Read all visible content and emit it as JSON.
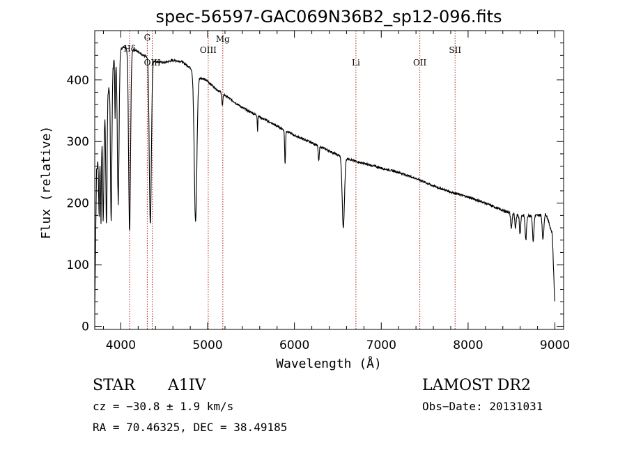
{
  "chart_data": {
    "type": "line",
    "title": "spec-56597-GAC069N36B2_sp12-096.fits",
    "xlabel": "Wavelength (Å)",
    "ylabel": "Flux (relative)",
    "xlim": [
      3700,
      9100
    ],
    "ylim": [
      -5,
      480
    ],
    "xticks": [
      4000,
      5000,
      6000,
      7000,
      8000,
      9000
    ],
    "yticks": [
      0,
      100,
      200,
      300,
      400
    ],
    "grid": false,
    "line_color": "#000000",
    "marker_color": "#b22222",
    "continuum": [
      [
        3700,
        30
      ],
      [
        3720,
        250
      ],
      [
        3760,
        290
      ],
      [
        3800,
        320
      ],
      [
        3850,
        380
      ],
      [
        3900,
        420
      ],
      [
        3950,
        440
      ],
      [
        4000,
        450
      ],
      [
        4050,
        455
      ],
      [
        4100,
        445
      ],
      [
        4150,
        450
      ],
      [
        4200,
        445
      ],
      [
        4250,
        440
      ],
      [
        4300,
        438
      ],
      [
        4400,
        430
      ],
      [
        4500,
        428
      ],
      [
        4600,
        432
      ],
      [
        4700,
        430
      ],
      [
        4800,
        420
      ],
      [
        4900,
        405
      ],
      [
        5000,
        398
      ],
      [
        5100,
        385
      ],
      [
        5200,
        375
      ],
      [
        5400,
        355
      ],
      [
        5600,
        340
      ],
      [
        5800,
        325
      ],
      [
        6000,
        310
      ],
      [
        6200,
        298
      ],
      [
        6400,
        285
      ],
      [
        6500,
        278
      ],
      [
        6700,
        268
      ],
      [
        7000,
        257
      ],
      [
        7200,
        250
      ],
      [
        7400,
        240
      ],
      [
        7600,
        228
      ],
      [
        7800,
        218
      ],
      [
        8000,
        210
      ],
      [
        8200,
        200
      ],
      [
        8400,
        188
      ],
      [
        8600,
        180
      ],
      [
        8800,
        180
      ],
      [
        8900,
        182
      ],
      [
        8970,
        150
      ],
      [
        9000,
        30
      ]
    ],
    "absorption_lines": [
      {
        "center": 3750,
        "depth": 100,
        "width": 5
      },
      {
        "center": 3771,
        "depth": 130,
        "width": 5
      },
      {
        "center": 3798,
        "depth": 150,
        "width": 6
      },
      {
        "center": 3835,
        "depth": 200,
        "width": 7
      },
      {
        "center": 3889,
        "depth": 240,
        "width": 8
      },
      {
        "center": 3934,
        "depth": 100,
        "width": 4
      },
      {
        "center": 3970,
        "depth": 240,
        "width": 10
      },
      {
        "center": 4101,
        "depth": 290,
        "width": 11
      },
      {
        "center": 4340,
        "depth": 270,
        "width": 12
      },
      {
        "center": 4861,
        "depth": 240,
        "width": 15
      },
      {
        "center": 5170,
        "depth": 20,
        "width": 6
      },
      {
        "center": 5575,
        "depth": 25,
        "width": 3
      },
      {
        "center": 5892,
        "depth": 55,
        "width": 5
      },
      {
        "center": 6280,
        "depth": 25,
        "width": 6
      },
      {
        "center": 6563,
        "depth": 115,
        "width": 13
      },
      {
        "center": 8498,
        "depth": 25,
        "width": 8
      },
      {
        "center": 8545,
        "depth": 25,
        "width": 7
      },
      {
        "center": 8598,
        "depth": 30,
        "width": 7
      },
      {
        "center": 8665,
        "depth": 40,
        "width": 8
      },
      {
        "center": 8750,
        "depth": 42,
        "width": 8
      },
      {
        "center": 8863,
        "depth": 40,
        "width": 9
      }
    ],
    "marked_lines": [
      {
        "wavelength": 4102,
        "label": "Hδ"
      },
      {
        "wavelength": 4305,
        "label": "G"
      },
      {
        "wavelength": 4363,
        "label": "OIII"
      },
      {
        "wavelength": 5007,
        "label": "OIII"
      },
      {
        "wavelength": 5175,
        "label": "Mg"
      },
      {
        "wavelength": 6708,
        "label": "Li"
      },
      {
        "wavelength": 7444,
        "label": "OII"
      },
      {
        "wavelength": 7850,
        "label": "SII"
      }
    ]
  },
  "info": {
    "object_type": "STAR",
    "spectral_class": "A1IV",
    "survey": "LAMOST  DR2",
    "redshift": "cz = −30.8 ± 1.9 km/s",
    "obs_date": "Obs−Date: 20131031",
    "coords": "RA =  70.46325, DEC =  38.49185"
  }
}
